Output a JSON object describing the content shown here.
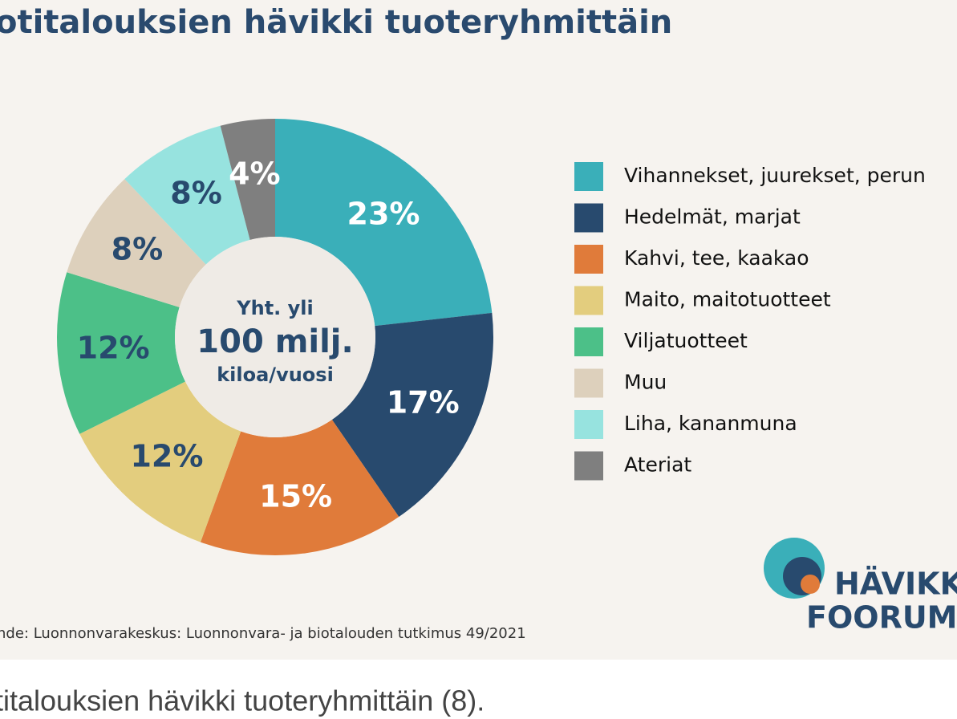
{
  "chart_data": {
    "type": "pie",
    "title": "otitalouksien hävikki tuoteryhmittäin",
    "categories": [
      "Vihannekset, juurekset, perun",
      "Hedelmät, marjat",
      "Kahvi, tee, kaakao",
      "Maito, maitotuotteet",
      "Viljatuotteet",
      "Muu",
      "Liha, kananmuna",
      "Ateriat"
    ],
    "values": [
      23,
      17,
      15,
      12,
      12,
      8,
      8,
      4
    ],
    "value_labels": [
      "23%",
      "17%",
      "15%",
      "12%",
      "12%",
      "8%",
      "8%",
      "4%"
    ],
    "colors": [
      "#3aafb9",
      "#284a6e",
      "#e07b3a",
      "#e3cd7e",
      "#4cc088",
      "#ddd0bc",
      "#97e3df",
      "#7f7f7f"
    ],
    "center_text": [
      "Yht. yli",
      "100 milj.",
      "kiloa/vuosi"
    ],
    "source": "nde: Luonnonvarakeskus: Luonnonvara- ja biotalouden tutkimus 49/2021"
  },
  "logo": [
    "HÄVIKK",
    "FOORUM"
  ],
  "caption": "titalouksien hävikki tuoteryhmittäin (8)."
}
